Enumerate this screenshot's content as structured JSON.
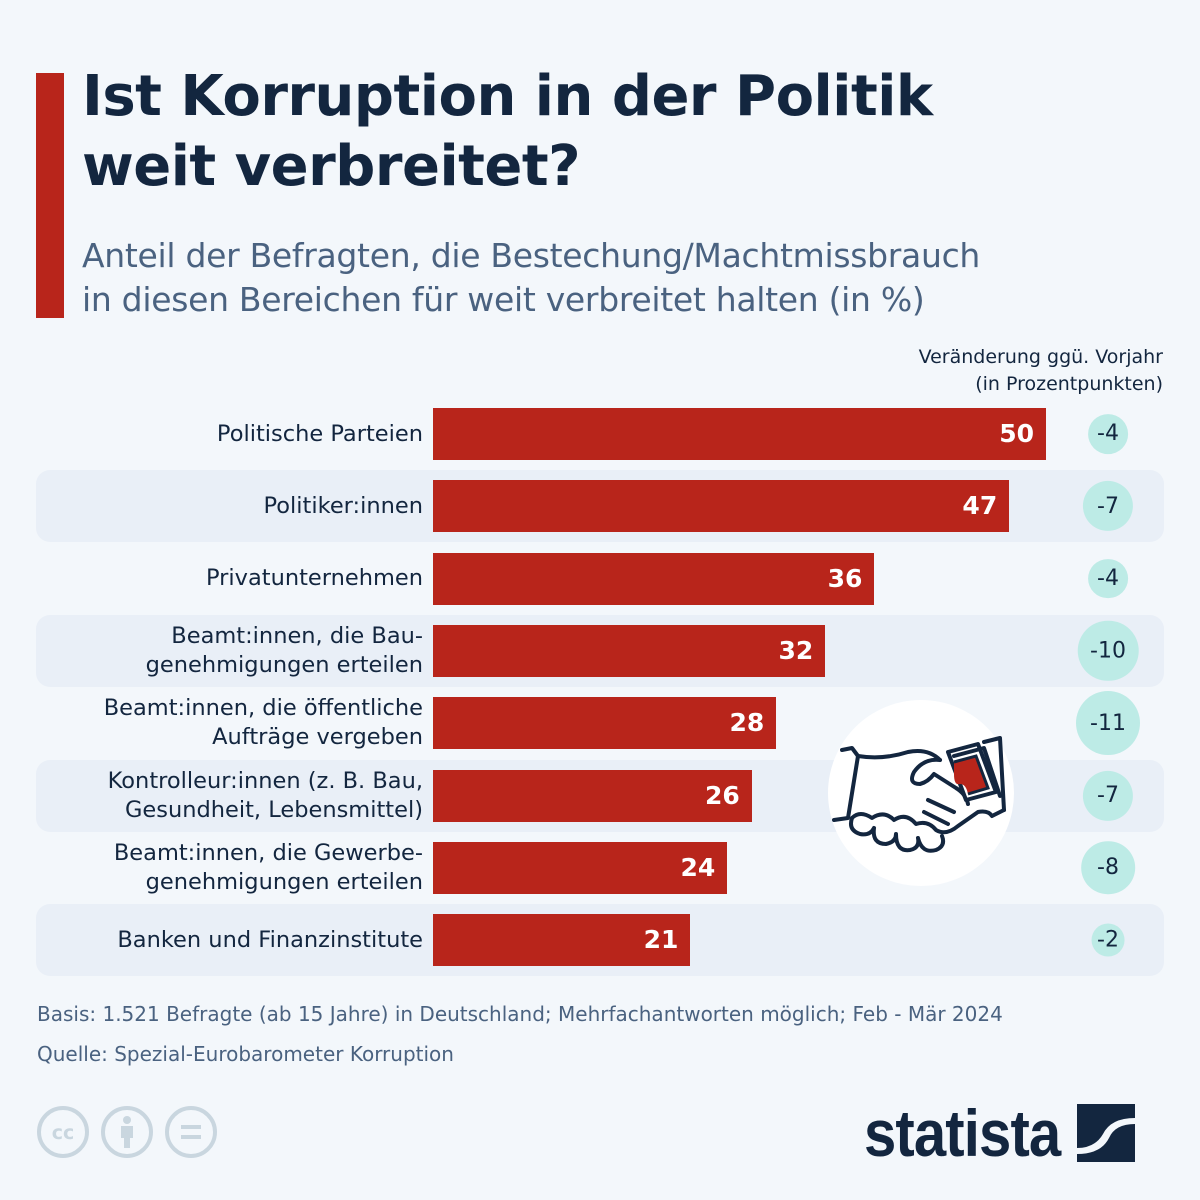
{
  "header": {
    "title_line1": "Ist Korruption in der Politik",
    "title_line2": "weit verbreitet?",
    "subtitle_line1": "Anteil der Befragten, die Bestechung/Machtmissbrauch",
    "subtitle_line2": "in diesen Bereichen für weit verbreitet halten (in %)"
  },
  "change_header": {
    "line1": "Veränderung ggü. Vorjahr",
    "line2": "(in Prozentpunkten)"
  },
  "colors": {
    "bar": "#b8251b",
    "change_circle": "#bdebe6",
    "row_stripe": "#e9eff7",
    "title": "#13263f",
    "subtitle": "#4a6280"
  },
  "chart_data": {
    "type": "bar",
    "orientation": "horizontal",
    "title": "Ist Korruption in der Politik weit verbreitet?",
    "subtitle": "Anteil der Befragten, die Bestechung/Machtmissbrauch in diesen Bereichen für weit verbreitet halten (in %)",
    "xlabel": "",
    "ylabel": "",
    "xlim": [
      0,
      50
    ],
    "grid": false,
    "categories": [
      [
        "Politische Parteien"
      ],
      [
        "Politiker:innen"
      ],
      [
        "Privatunternehmen"
      ],
      [
        "Beamt:innen, die Bau-",
        "genehmigungen erteilen"
      ],
      [
        "Beamt:innen, die öffentliche",
        "Aufträge vergeben"
      ],
      [
        "Kontrolleur:innen (z. B. Bau,",
        "Gesundheit, Lebensmittel)"
      ],
      [
        "Beamt:innen, die Gewerbe-",
        "genehmigungen erteilen"
      ],
      [
        "Banken und Finanzinstitute"
      ]
    ],
    "series": [
      {
        "name": "Anteil (in %)",
        "values": [
          50,
          47,
          36,
          32,
          28,
          26,
          24,
          21
        ]
      },
      {
        "name": "Veränderung ggü. Vorjahr (in Prozentpunkten)",
        "values": [
          -4,
          -7,
          -4,
          -10,
          -11,
          -7,
          -8,
          -2
        ]
      }
    ]
  },
  "footer": {
    "basis": "Basis: 1.521 Befragte (ab 15 Jahre) in Deutschland; Mehrfachantworten möglich; Feb - Mär 2024",
    "source": "Quelle: Spezial-Eurobarometer Korruption",
    "license_icons": [
      "cc-icon",
      "attribution-icon",
      "no-derivatives-icon"
    ],
    "logo": "statista"
  }
}
